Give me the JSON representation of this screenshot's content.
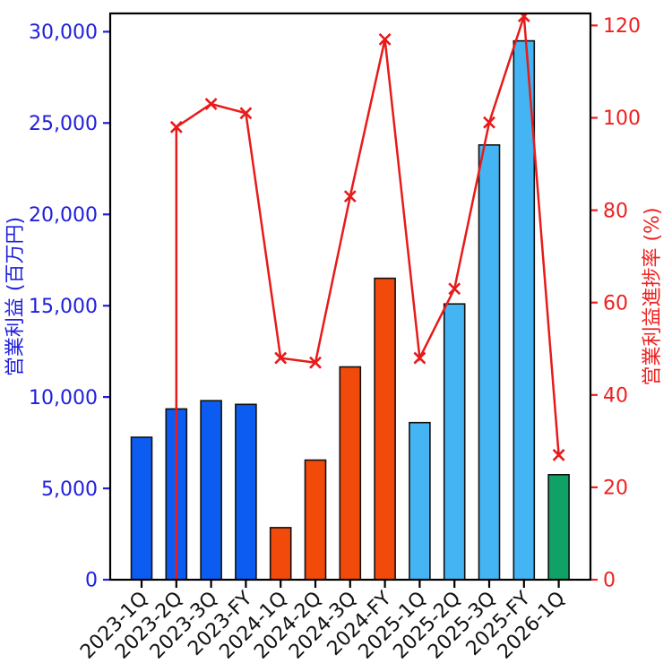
{
  "figure": {
    "background": "#ffffff"
  },
  "chart_data": {
    "type": "bar",
    "subtype": "combo-bar-line-dual-axis",
    "title": "",
    "categories": [
      "2023-1Q",
      "2023-2Q",
      "2023-3Q",
      "2023-FY",
      "2024-1Q",
      "2024-2Q",
      "2024-3Q",
      "2024-FY",
      "2025-1Q",
      "2025-2Q",
      "2025-3Q",
      "2025-FY",
      "2026-1Q"
    ],
    "series": [
      {
        "name": "営業利益",
        "type": "bar",
        "axis": "left",
        "values": [
          7800,
          9350,
          9800,
          9600,
          2850,
          6550,
          11650,
          16500,
          8600,
          15100,
          23800,
          29500,
          5750
        ],
        "bar_colors": [
          "#0c5cf2",
          "#0c5cf2",
          "#0c5cf2",
          "#0c5cf2",
          "#f24a0a",
          "#f24a0a",
          "#f24a0a",
          "#f24a0a",
          "#44b5f2",
          "#44b5f2",
          "#44b5f2",
          "#44b5f2",
          "#0fa166"
        ],
        "edge_color": "#111111"
      },
      {
        "name": "営業利益進捗率",
        "type": "line",
        "axis": "right",
        "values": [
          null,
          98,
          103,
          101,
          48,
          47,
          83,
          117,
          48,
          63,
          99,
          122,
          27
        ],
        "start_point": {
          "category": "2023-2Q",
          "value": 0
        },
        "color": "#e81a1a",
        "marker": "x"
      }
    ],
    "color_groups": {
      "2023": "#0c5cf2",
      "2024": "#f24a0a",
      "2025": "#44b5f2",
      "2026": "#0fa166"
    },
    "left_axis": {
      "label": "営業利益 (百万円)",
      "min": 0,
      "max": 30000,
      "tick_step": 5000,
      "ylim": [
        0,
        31000
      ],
      "tick_values": [
        0,
        5000,
        10000,
        15000,
        20000,
        25000,
        30000
      ],
      "tick_labels": [
        "0",
        "5,000",
        "10,000",
        "15,000",
        "20,000",
        "25,000",
        "30,000"
      ],
      "color": "#2020dd"
    },
    "right_axis": {
      "label": "営業利益進捗率 (%)",
      "min": 0,
      "max": 120,
      "tick_step": 20,
      "ylim": [
        0,
        122.6
      ],
      "tick_values": [
        0,
        20,
        40,
        60,
        80,
        100,
        120
      ],
      "tick_labels": [
        "0",
        "20",
        "40",
        "60",
        "80",
        "100",
        "120"
      ],
      "color": "#ef2020"
    },
    "x_axis": {
      "tick_rotation": 45,
      "label_color": "#111111",
      "tick_labels": [
        "2023-1Q",
        "2023-2Q",
        "2023-3Q",
        "2023-FY",
        "2024-1Q",
        "2024-2Q",
        "2024-3Q",
        "2024-FY",
        "2025-1Q",
        "2025-2Q",
        "2025-3Q",
        "2025-FY",
        "2026-1Q"
      ]
    },
    "grid": false,
    "legend": null
  }
}
